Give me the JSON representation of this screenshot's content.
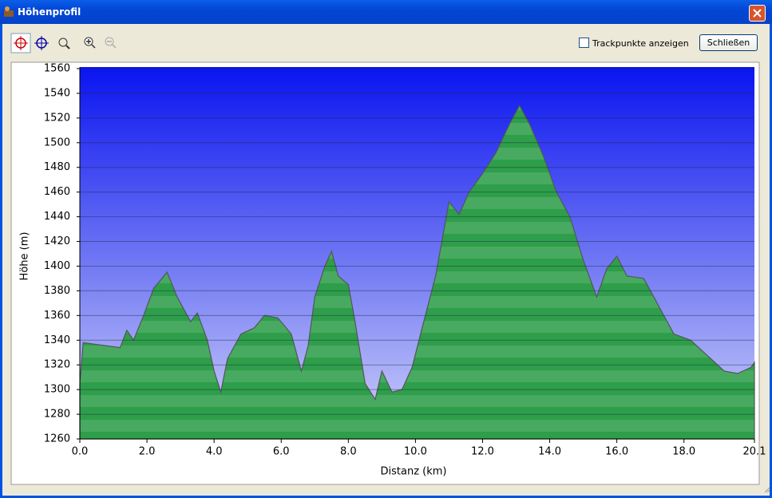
{
  "window": {
    "title": "Höhenprofil"
  },
  "toolbar": {
    "checkbox_label": "Trackpunkte anzeigen",
    "button_label": "Schließen"
  },
  "chart_data": {
    "type": "area",
    "y_label": "Höhe (m)",
    "x_label": "Distanz   (km)",
    "color": "#2e9e4a",
    "grid": true,
    "x": [
      0.0,
      0.1,
      1.2,
      1.4,
      1.6,
      1.9,
      2.2,
      2.6,
      2.9,
      3.3,
      3.5,
      3.8,
      4.0,
      4.2,
      4.4,
      4.8,
      5.2,
      5.5,
      5.9,
      6.3,
      6.6,
      6.8,
      7.0,
      7.3,
      7.5,
      7.7,
      8.0,
      8.2,
      8.5,
      8.8,
      9.0,
      9.3,
      9.6,
      9.9,
      10.2,
      10.6,
      11.0,
      11.3,
      11.6,
      12.0,
      12.4,
      12.8,
      13.1,
      13.4,
      13.8,
      14.2,
      14.6,
      15.0,
      15.4,
      15.7,
      16.0,
      16.3,
      16.8,
      17.3,
      17.7,
      18.2,
      18.8,
      19.2,
      19.6,
      20.0,
      20.1
    ],
    "values": [
      1305,
      1338,
      1334,
      1348,
      1340,
      1360,
      1382,
      1395,
      1375,
      1355,
      1362,
      1340,
      1315,
      1298,
      1325,
      1345,
      1350,
      1360,
      1358,
      1345,
      1315,
      1335,
      1375,
      1400,
      1412,
      1392,
      1385,
      1355,
      1305,
      1292,
      1315,
      1298,
      1300,
      1318,
      1350,
      1392,
      1452,
      1442,
      1460,
      1475,
      1492,
      1515,
      1530,
      1515,
      1490,
      1460,
      1440,
      1405,
      1375,
      1398,
      1408,
      1392,
      1390,
      1365,
      1345,
      1340,
      1325,
      1315,
      1313,
      1318,
      1322
    ],
    "xlim": [
      0,
      20.1
    ],
    "ylim": [
      1260,
      1560
    ],
    "xticks": [
      {
        "value": 0,
        "label": "0.0"
      },
      {
        "value": 2,
        "label": "2.0"
      },
      {
        "value": 4,
        "label": "4.0"
      },
      {
        "value": 6,
        "label": "6.0"
      },
      {
        "value": 8,
        "label": "8.0"
      },
      {
        "value": 10,
        "label": "10.0"
      },
      {
        "value": 12,
        "label": "12.0"
      },
      {
        "value": 14,
        "label": "14.0"
      },
      {
        "value": 16,
        "label": "16.0"
      },
      {
        "value": 18,
        "label": "18.0"
      },
      20.1
    ],
    "yticks": [
      1260,
      1280,
      1300,
      1320,
      1340,
      1360,
      1380,
      1400,
      1420,
      1440,
      1460,
      1480,
      1500,
      1520,
      1540,
      1560
    ]
  }
}
